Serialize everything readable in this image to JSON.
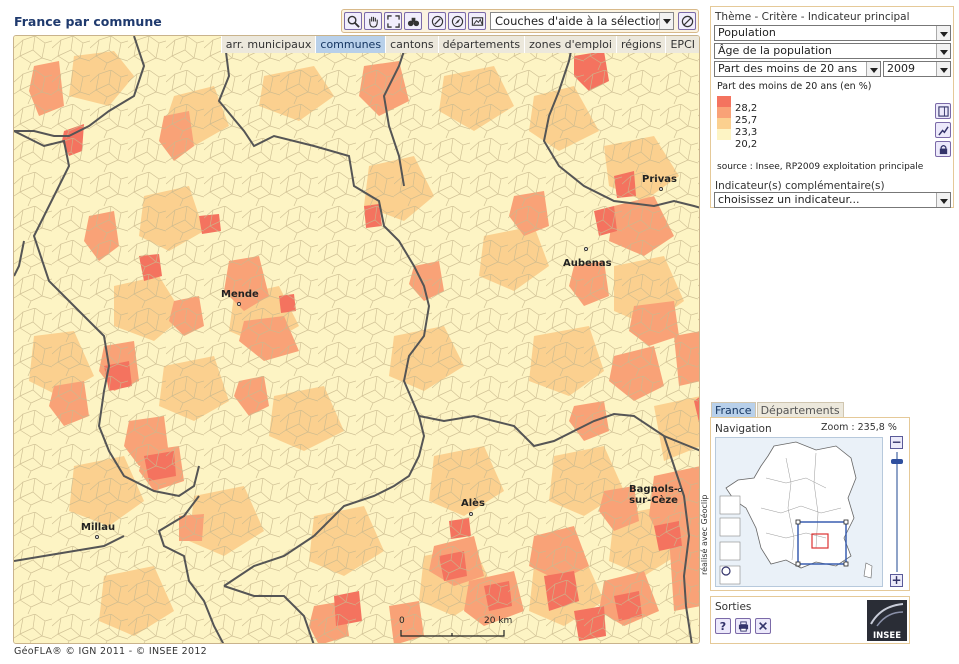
{
  "page": {
    "title": "France par commune"
  },
  "toolbar": {
    "tools": [
      "zoom-icon",
      "pan-hand-icon",
      "full-extent-icon",
      "binoculars-icon",
      "measure-icon",
      "compass-icon",
      "image-export-icon"
    ],
    "layer_select": "Couches d'aide à la sélection...",
    "clear_icon": "no-selection-icon"
  },
  "map_tabs": [
    {
      "label": "arr. municipaux",
      "active": false
    },
    {
      "label": "communes",
      "active": true
    },
    {
      "label": "cantons",
      "active": false
    },
    {
      "label": "départements",
      "active": false
    },
    {
      "label": "zones d'emploi",
      "active": false
    },
    {
      "label": "régions",
      "active": false
    },
    {
      "label": "EPCI",
      "active": false
    }
  ],
  "cities": [
    {
      "name": "Privas"
    },
    {
      "name": "Aubenas"
    },
    {
      "name": "Mende"
    },
    {
      "name": "Alès"
    },
    {
      "name": "Bagnols-\nsur-Cèze"
    },
    {
      "name": "Millau"
    }
  ],
  "scale": {
    "start": "0",
    "end": "20 km"
  },
  "credits": {
    "side": "réalisé avec Géoclip",
    "footer": "GéoFLA® © IGN 2011 - © INSEE 2012"
  },
  "indicator_panel": {
    "heading": "Thème - Critère - Indicateur principal",
    "theme": "Population",
    "critere": "Âge de la population",
    "indicateur": "Part des moins de 20 ans",
    "year": "2009",
    "legend_title": "Part des moins de 20 ans (en %)",
    "legend": [
      {
        "value": "28,2",
        "color": "#f4735f"
      },
      {
        "value": "25,7",
        "color": "#f9a277"
      },
      {
        "value": "23,3",
        "color": "#fbd08f"
      },
      {
        "value": "20,2",
        "color": "#fdf4c4"
      }
    ],
    "source": "source : Insee, RP2009 exploitation principale",
    "complementary_label": "Indicateur(s) complémentaire(s)",
    "complementary_select": "choisissez un indicateur..."
  },
  "navigation": {
    "tabs": [
      {
        "label": "France",
        "active": true
      },
      {
        "label": "Départements",
        "active": false
      }
    ],
    "title": "Navigation",
    "zoom": "Zoom : 235,8 %",
    "zoom_in": "+",
    "zoom_out": "−"
  },
  "outputs": {
    "title": "Sorties",
    "logo_text": "INSEE"
  },
  "colors": {
    "accent": "#1f3a6e",
    "border": "#e5c998",
    "tab_active": "#b8d0ea"
  }
}
